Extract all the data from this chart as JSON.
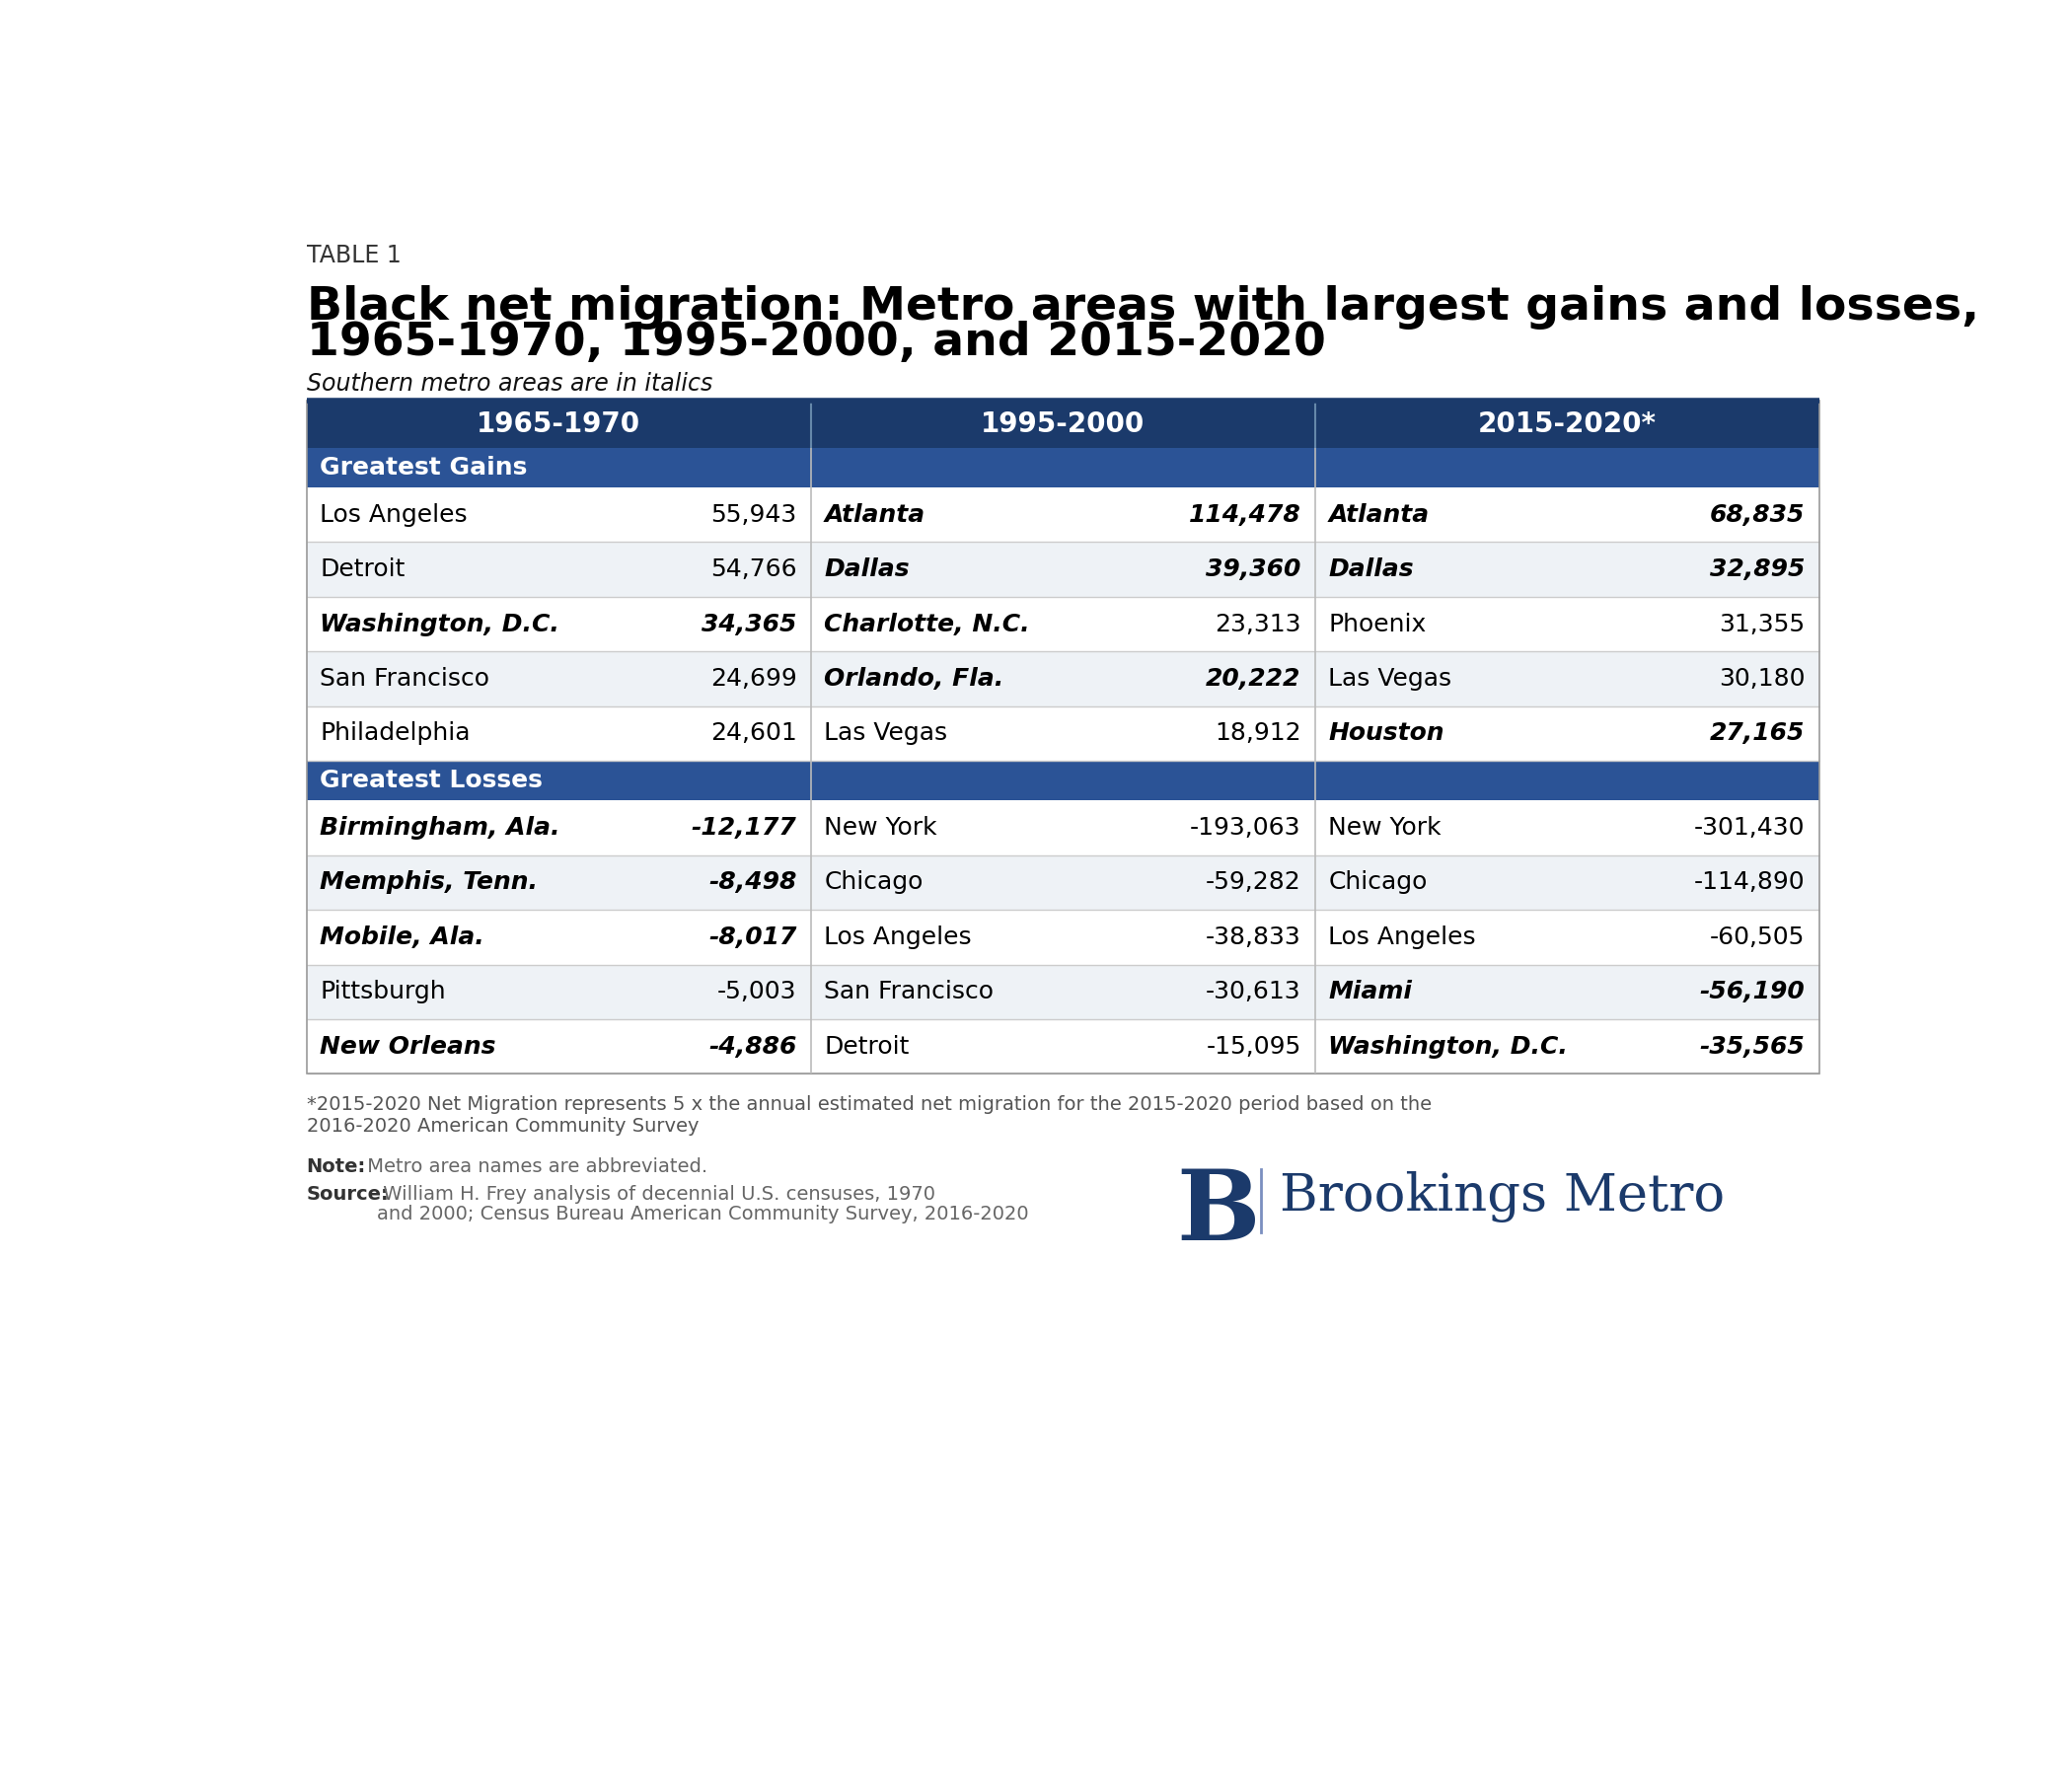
{
  "table_label": "TABLE 1",
  "title_line1": "Black net migration: Metro areas with largest gains and losses,",
  "title_line2": "1965-1970, 1995-2000, and 2015-2020",
  "subtitle": "Southern metro areas are in italics",
  "col_headers": [
    "1965-1970",
    "1995-2000",
    "2015-2020*"
  ],
  "section_gains": "Greatest Gains",
  "section_losses": "Greatest Losses",
  "gains_data": [
    [
      {
        "text": "Los Angeles",
        "italic": false
      },
      {
        "text": "55,943",
        "italic": false
      },
      {
        "text": "Atlanta",
        "italic": true
      },
      {
        "text": "114,478",
        "italic": true
      },
      {
        "text": "Atlanta",
        "italic": true
      },
      {
        "text": "68,835",
        "italic": true
      }
    ],
    [
      {
        "text": "Detroit",
        "italic": false
      },
      {
        "text": "54,766",
        "italic": false
      },
      {
        "text": "Dallas",
        "italic": true
      },
      {
        "text": "39,360",
        "italic": true
      },
      {
        "text": "Dallas",
        "italic": true
      },
      {
        "text": "32,895",
        "italic": true
      }
    ],
    [
      {
        "text": "Washington, D.C.",
        "italic": true
      },
      {
        "text": "34,365",
        "italic": true
      },
      {
        "text": "Charlotte, N.C.",
        "italic": true
      },
      {
        "text": "23,313",
        "italic": false
      },
      {
        "text": "Phoenix",
        "italic": false
      },
      {
        "text": "31,355",
        "italic": false
      }
    ],
    [
      {
        "text": "San Francisco",
        "italic": false
      },
      {
        "text": "24,699",
        "italic": false
      },
      {
        "text": "Orlando, Fla.",
        "italic": true
      },
      {
        "text": "20,222",
        "italic": true
      },
      {
        "text": "Las Vegas",
        "italic": false
      },
      {
        "text": "30,180",
        "italic": false
      }
    ],
    [
      {
        "text": "Philadelphia",
        "italic": false
      },
      {
        "text": "24,601",
        "italic": false
      },
      {
        "text": "Las Vegas",
        "italic": false
      },
      {
        "text": "18,912",
        "italic": false
      },
      {
        "text": "Houston",
        "italic": true
      },
      {
        "text": "27,165",
        "italic": true
      }
    ]
  ],
  "losses_data": [
    [
      {
        "text": "Birmingham, Ala.",
        "italic": true
      },
      {
        "text": "-12,177",
        "italic": true
      },
      {
        "text": "New York",
        "italic": false
      },
      {
        "text": "-193,063",
        "italic": false
      },
      {
        "text": "New York",
        "italic": false
      },
      {
        "text": "-301,430",
        "italic": false
      }
    ],
    [
      {
        "text": "Memphis, Tenn.",
        "italic": true
      },
      {
        "text": "-8,498",
        "italic": true
      },
      {
        "text": "Chicago",
        "italic": false
      },
      {
        "text": "-59,282",
        "italic": false
      },
      {
        "text": "Chicago",
        "italic": false
      },
      {
        "text": "-114,890",
        "italic": false
      }
    ],
    [
      {
        "text": "Mobile, Ala.",
        "italic": true
      },
      {
        "text": "-8,017",
        "italic": true
      },
      {
        "text": "Los Angeles",
        "italic": false
      },
      {
        "text": "-38,833",
        "italic": false
      },
      {
        "text": "Los Angeles",
        "italic": false
      },
      {
        "text": "-60,505",
        "italic": false
      }
    ],
    [
      {
        "text": "Pittsburgh",
        "italic": false
      },
      {
        "text": "-5,003",
        "italic": false
      },
      {
        "text": "San Francisco",
        "italic": false
      },
      {
        "text": "-30,613",
        "italic": false
      },
      {
        "text": "Miami",
        "italic": true
      },
      {
        "text": "-56,190",
        "italic": true
      }
    ],
    [
      {
        "text": "New Orleans",
        "italic": true
      },
      {
        "text": "-4,886",
        "italic": true
      },
      {
        "text": "Detroit",
        "italic": false
      },
      {
        "text": "-15,095",
        "italic": false
      },
      {
        "text": "Washington, D.C.",
        "italic": true
      },
      {
        "text": "-35,565",
        "italic": true
      }
    ]
  ],
  "footnote_star": "*2015-2020 Net Migration represents 5 x the annual estimated net migration for the 2015-2020 period based on the",
  "footnote_line2": "2016-2020 American Community Survey",
  "note_bold": "Note:",
  "note_text": " Metro area names are abbreviated.",
  "source_bold": "Source:",
  "source_text": " William H. Frey analysis of decennial U.S. censuses, 1970",
  "source_text2": "and 2000; Census Bureau American Community Survey, 2016-2020",
  "header_bg": "#1B3A6B",
  "section_bg": "#2B5396",
  "row_bg_even": "#EEF2F6",
  "row_bg_odd": "#FFFFFF",
  "brookings_color": "#1B3A6B",
  "brookings_line_color": "#7B8FC0"
}
